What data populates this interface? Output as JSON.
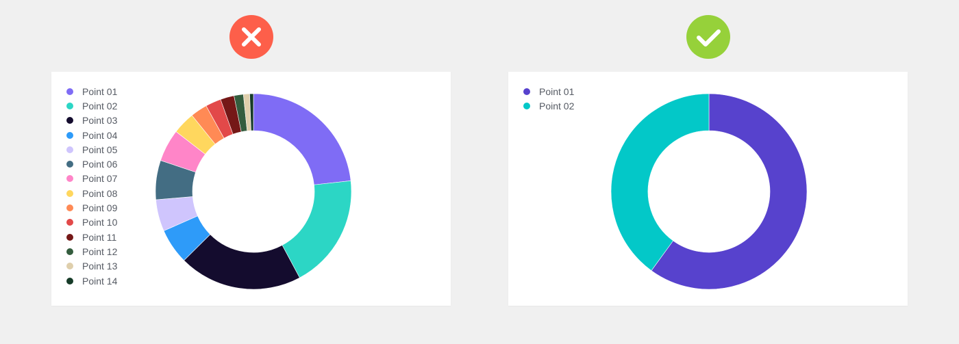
{
  "colors": {
    "background": "#f0f0f0",
    "card": "#ffffff",
    "bad_badge": "#fd5f4a",
    "good_badge": "#96d13a",
    "badge_glyph": "#ffffff",
    "legend_text": "#555a63"
  },
  "icons": {
    "bad": "close-icon",
    "good": "check-icon"
  },
  "chart_data": [
    {
      "type": "pie",
      "donut": true,
      "example": "bad",
      "categories": [
        "Point 01",
        "Point 02",
        "Point 03",
        "Point 04",
        "Point 05",
        "Point 06",
        "Point 07",
        "Point 08",
        "Point 09",
        "Point 10",
        "Point 11",
        "Point 12",
        "Point 13",
        "Point 14"
      ],
      "values": [
        22.6,
        18.4,
        19.8,
        5.7,
        5.1,
        6.3,
        5.2,
        3.6,
        2.7,
        2.5,
        2.2,
        1.5,
        1.0,
        0.6
      ],
      "colors": [
        "#7f6cf5",
        "#2cd6c5",
        "#140c2e",
        "#2e9bf9",
        "#cfc5fd",
        "#436d83",
        "#ff85c8",
        "#ffd75e",
        "#ff8a55",
        "#e24949",
        "#751817",
        "#345d3e",
        "#dfcfac",
        "#163b28"
      ],
      "legend": "top-left"
    },
    {
      "type": "pie",
      "donut": true,
      "example": "good",
      "categories": [
        "Point 01",
        "Point 02"
      ],
      "values": [
        60,
        40
      ],
      "colors": [
        "#5742cd",
        "#03c8c8"
      ],
      "legend": "top-left"
    }
  ]
}
